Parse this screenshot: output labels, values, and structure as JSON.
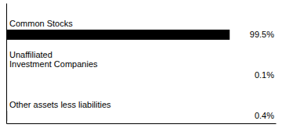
{
  "chart_data": {
    "type": "bar",
    "orientation": "horizontal",
    "categories": [
      "Common Stocks",
      "Unaffiliated\nInvestment Companies",
      "Other assets less liabilities"
    ],
    "values": [
      99.5,
      0.1,
      0.4
    ],
    "value_labels": [
      "99.5%",
      "0.1%",
      "0.4%"
    ],
    "data_labels": true,
    "color": "#000000",
    "xlim": [
      0,
      120
    ],
    "tick_labels": false
  }
}
